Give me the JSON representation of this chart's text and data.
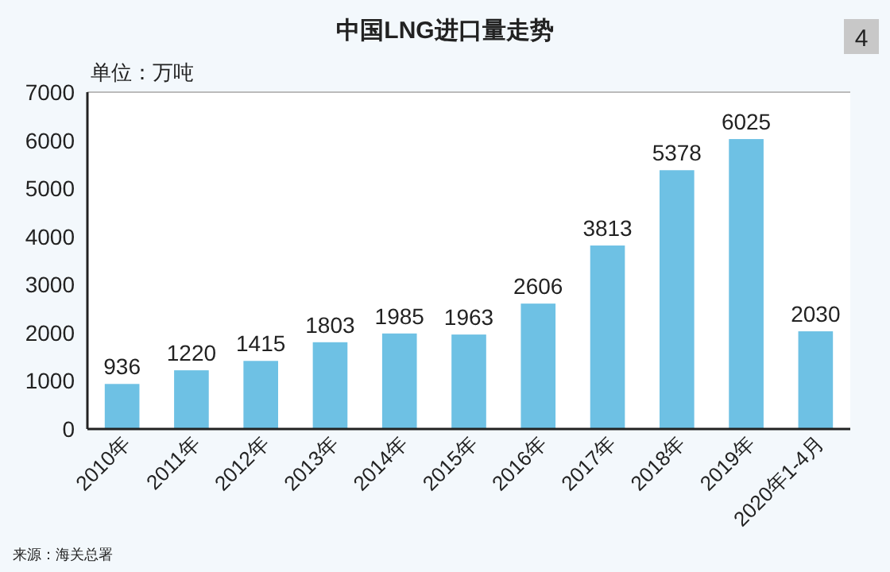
{
  "chart_data": {
    "type": "bar",
    "title": "中国LNG进口量走势",
    "ylabel": "单位：万吨",
    "categories": [
      "2010年",
      "2011年",
      "2012年",
      "2013年",
      "2014年",
      "2015年",
      "2016年",
      "2017年",
      "2018年",
      "2019年",
      "2020年1-4月"
    ],
    "values": [
      936,
      1220,
      1415,
      1803,
      1985,
      1963,
      2606,
      3813,
      5378,
      6025,
      2030
    ],
    "color": "#6ec1e4",
    "ylim": [
      0,
      7000
    ],
    "yticks": [
      0,
      1000,
      2000,
      3000,
      4000,
      5000,
      6000,
      7000
    ],
    "grid": false,
    "data_labels": true,
    "annotations": [
      "4",
      "来源：海关总署"
    ]
  }
}
